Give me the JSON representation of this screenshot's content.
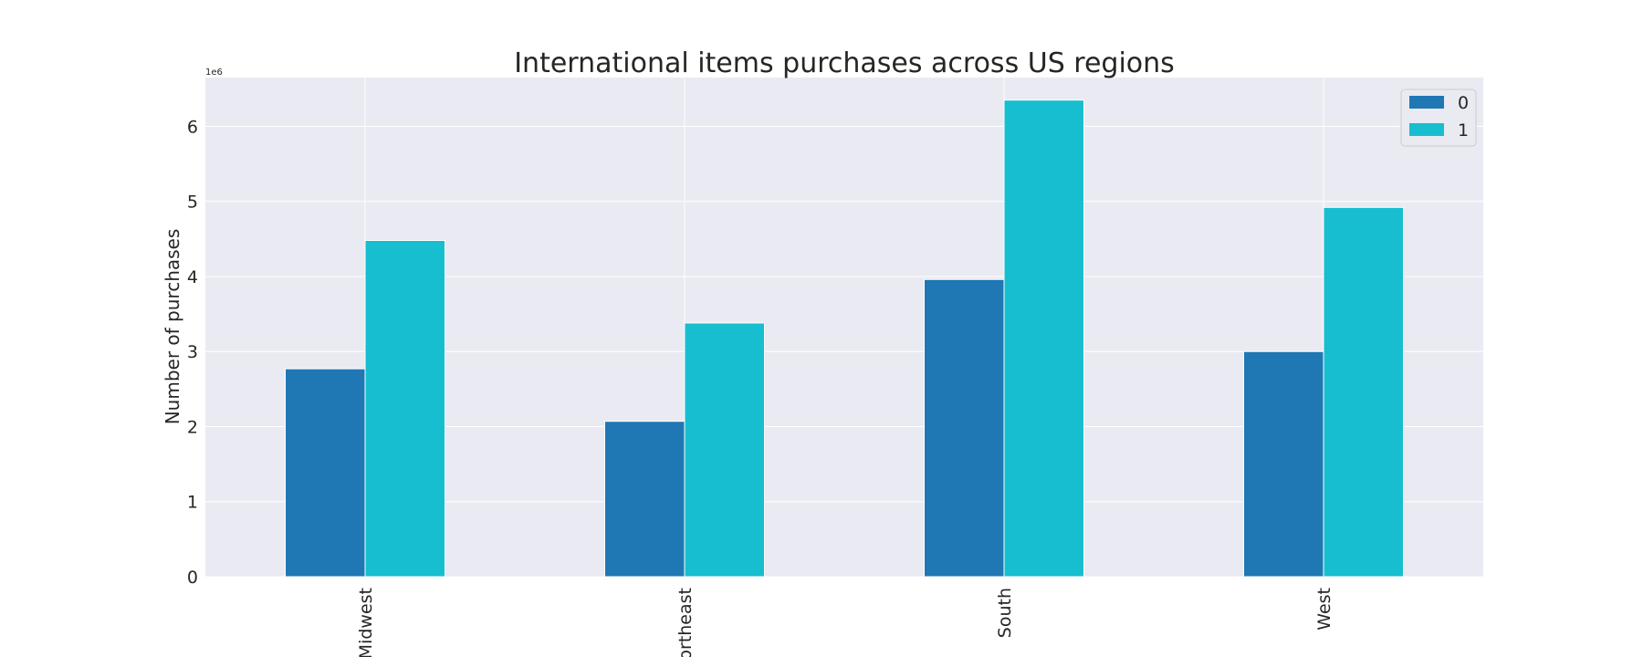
{
  "chart_data": {
    "type": "bar",
    "title": "International items purchases across US regions",
    "xlabel": "",
    "ylabel": "Number of purchases",
    "axis_offset_label": "1e6",
    "categories": [
      "Midwest",
      "Northeast",
      "South",
      "West"
    ],
    "series": [
      {
        "name": "0",
        "color": "#1f77b4",
        "values": [
          2770000,
          2070000,
          3960000,
          3000000
        ]
      },
      {
        "name": "1",
        "color": "#17becf",
        "values": [
          4480000,
          3380000,
          6350000,
          4920000
        ]
      }
    ],
    "y_ticks": [
      0,
      1,
      2,
      3,
      4,
      5,
      6
    ],
    "ylim": [
      0,
      6650000
    ],
    "grid": true,
    "legend_position": "top-right",
    "plot_background": "#eaeaf2"
  }
}
